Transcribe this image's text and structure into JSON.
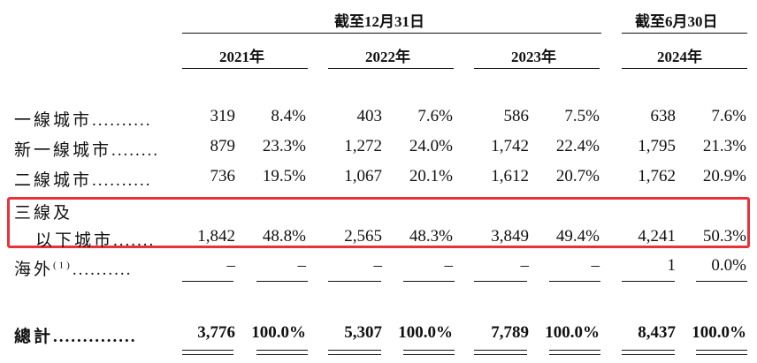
{
  "headers": {
    "group1": "截至12月31日",
    "group2": "截至6月30日",
    "years": [
      "2021年",
      "2022年",
      "2023年",
      "2024年"
    ]
  },
  "rows": [
    {
      "label": "一線城市",
      "dots": "..........",
      "values": [
        "319",
        "8.4%",
        "403",
        "7.6%",
        "586",
        "7.5%",
        "638",
        "7.6%"
      ]
    },
    {
      "label": "新一線城市",
      "dots": "........",
      "values": [
        "879",
        "23.3%",
        "1,272",
        "24.0%",
        "1,742",
        "22.4%",
        "1,795",
        "21.3%"
      ]
    },
    {
      "label": "二線城市",
      "dots": "..........",
      "values": [
        "736",
        "19.5%",
        "1,067",
        "20.1%",
        "1,612",
        "20.7%",
        "1,762",
        "20.9%"
      ]
    },
    {
      "label_line1": "三線及",
      "label": "以下城市",
      "dots": ".......",
      "values": [
        "1,842",
        "48.8%",
        "2,565",
        "48.3%",
        "3,849",
        "49.4%",
        "4,241",
        "50.3%"
      ]
    },
    {
      "label": "海外",
      "sup": "(1)",
      "dots": "..........",
      "values": [
        "–",
        "–",
        "–",
        "–",
        "–",
        "–",
        "1",
        "0.0%"
      ]
    }
  ],
  "total": {
    "label": "總計",
    "dots": "..............",
    "values": [
      "3,776",
      "100.0%",
      "5,307",
      "100.0%",
      "7,789",
      "100.0%",
      "8,437",
      "100.0%"
    ]
  }
}
